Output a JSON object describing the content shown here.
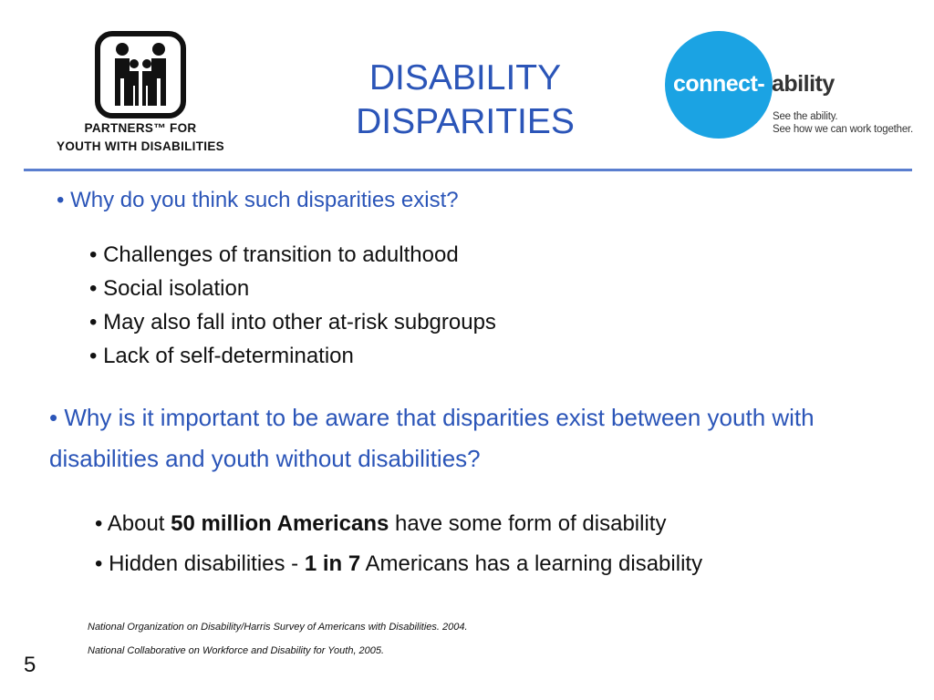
{
  "logo_left": {
    "line1": "PARTNERS™ FOR",
    "line2": "YOUTH WITH DISABILITIES"
  },
  "title": {
    "line1": "DISABILITY",
    "line2": "DISPARITIES"
  },
  "logo_right": {
    "brand_part1": "connect-",
    "brand_part2": "ability",
    "tagline1": "See the ability.",
    "tagline2": "See how we can work together."
  },
  "section1": {
    "question": "• Why do you think such disparities exist?",
    "items": [
      "• Challenges of transition to adulthood",
      "• Social isolation",
      "• May also fall into other at-risk subgroups",
      "• Lack of self-determination"
    ]
  },
  "section2": {
    "bullet": "•",
    "question": "Why is it important to be aware that disparities exist between youth with disabilities and youth without disabilities?",
    "item1": {
      "pre": "• About ",
      "bold": "50 million Americans",
      "post": " have some form of disability"
    },
    "item2": {
      "pre": "• Hidden disabilities - ",
      "bold": "1 in 7",
      "post": " Americans has a learning disability"
    }
  },
  "citations": [
    "National Organization on Disability/Harris Survey of Americans with Disabilities. 2004.",
    "National Collaborative on Workforce and Disability for Youth, 2005."
  ],
  "page_number": "5",
  "colors": {
    "title_blue": "#2b55b8",
    "rule_blue": "#5a7ecf",
    "circle_blue": "#1ba3e3"
  }
}
